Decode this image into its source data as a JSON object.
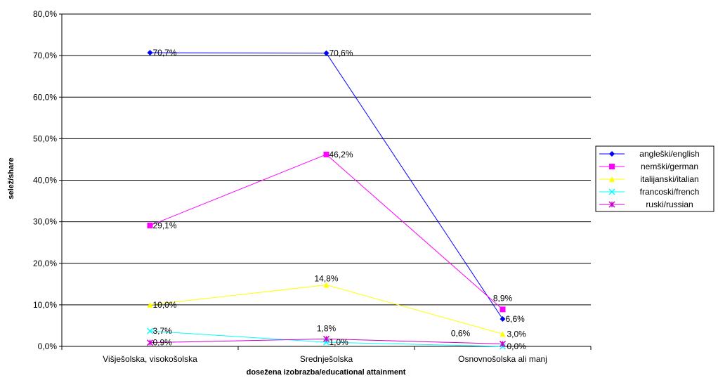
{
  "chart_data": {
    "type": "line",
    "title": "",
    "xlabel": "dosežena izobrazba/educational attainment",
    "ylabel": "selež/share",
    "categories": [
      "Višješolska, visokošolska",
      "Srednješolska",
      "Osnovnošolska ali manj"
    ],
    "ylim": [
      0,
      80
    ],
    "y_ticks": [
      "0,0%",
      "10,0%",
      "20,0%",
      "30,0%",
      "40,0%",
      "50,0%",
      "60,0%",
      "70,0%",
      "80,0%"
    ],
    "grid": true,
    "legend_position": "right",
    "series": [
      {
        "name": "angleški/english",
        "color": "#0000ff",
        "marker": "diamond",
        "values": [
          70.7,
          70.6,
          6.6
        ],
        "labels": [
          "70,7%",
          "70,6%",
          "6,6%"
        ]
      },
      {
        "name": "nemški/german",
        "color": "#ff00ff",
        "marker": "square",
        "values": [
          29.1,
          46.2,
          8.9
        ],
        "labels": [
          "29,1%",
          "46,2%",
          "8,9%"
        ]
      },
      {
        "name": "italijanski/italian",
        "color": "#ffff00",
        "marker": "triangle",
        "values": [
          10.0,
          14.8,
          3.0
        ],
        "labels": [
          "10,0%",
          "14,8%",
          "3,0%"
        ]
      },
      {
        "name": "francoski/french",
        "color": "#00ffff",
        "marker": "x",
        "values": [
          3.7,
          1.0,
          0.0
        ],
        "labels": [
          "3,7%",
          "1,0%",
          "0,0%"
        ]
      },
      {
        "name": "ruski/russian",
        "color": "#cc00cc",
        "marker": "star",
        "values": [
          0.9,
          1.8,
          0.6
        ],
        "labels": [
          "0,9%",
          "1,8%",
          "0,6%"
        ]
      }
    ]
  }
}
